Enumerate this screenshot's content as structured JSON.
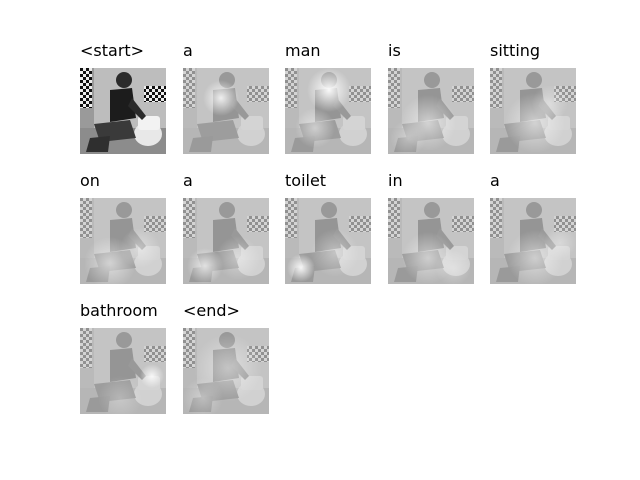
{
  "tokens": [
    "<start>",
    "a",
    "man",
    "is",
    "sitting",
    "on",
    "a",
    "toilet",
    "in",
    "a",
    "bathroom",
    "<end>"
  ]
}
